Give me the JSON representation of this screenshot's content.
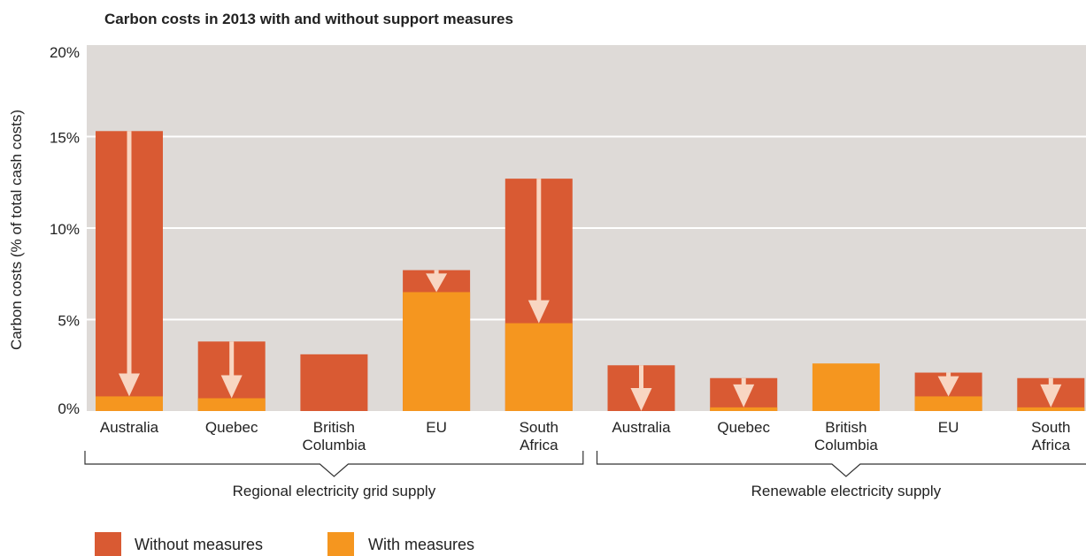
{
  "chart_data": {
    "type": "bar",
    "title": "Carbon costs in 2013 with and without support measures",
    "ylabel": "Carbon costs (% of total cash costs)",
    "ylim": [
      0,
      20
    ],
    "yticks": [
      "0%",
      "5%",
      "10%",
      "15%",
      "20%"
    ],
    "grid": true,
    "legend_position": "bottom-left",
    "categories": [
      [
        "Australia"
      ],
      [
        "Quebec"
      ],
      [
        "British",
        "Columbia"
      ],
      [
        "EU"
      ],
      [
        "South",
        "Africa"
      ],
      [
        "Australia"
      ],
      [
        "Quebec"
      ],
      [
        "British",
        "Columbia"
      ],
      [
        "EU"
      ],
      [
        "South",
        "Africa"
      ]
    ],
    "groups": [
      {
        "label": "Regional electricity grid supply",
        "members": [
          0,
          4
        ]
      },
      {
        "label": "Renewable electricity supply",
        "members": [
          5,
          9
        ]
      }
    ],
    "series": [
      {
        "name": "Without measures",
        "color": "#d95a33",
        "values": [
          15.3,
          3.8,
          3.1,
          7.7,
          12.7,
          2.5,
          1.8,
          null,
          2.1,
          1.8
        ]
      },
      {
        "name": "With measures",
        "color": "#f5961f",
        "values": [
          0.8,
          0.7,
          null,
          6.5,
          4.8,
          0,
          0.2,
          2.6,
          0.8,
          0.2
        ]
      }
    ],
    "colors": {
      "background": "#dedad7",
      "arrow": "#f8d6c2",
      "gridline": "#ffffff"
    }
  }
}
